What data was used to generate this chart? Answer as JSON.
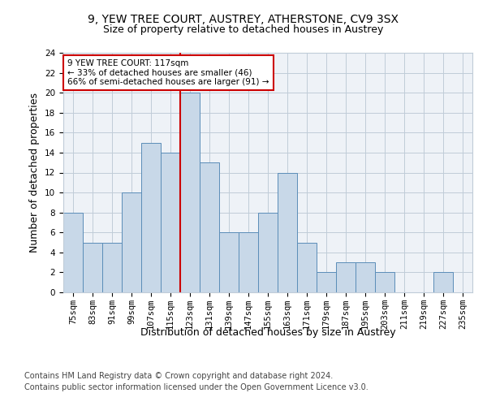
{
  "title1": "9, YEW TREE COURT, AUSTREY, ATHERSTONE, CV9 3SX",
  "title2": "Size of property relative to detached houses in Austrey",
  "xlabel": "Distribution of detached houses by size in Austrey",
  "ylabel": "Number of detached properties",
  "footer1": "Contains HM Land Registry data © Crown copyright and database right 2024.",
  "footer2": "Contains public sector information licensed under the Open Government Licence v3.0.",
  "categories": [
    "75sqm",
    "83sqm",
    "91sqm",
    "99sqm",
    "107sqm",
    "115sqm",
    "123sqm",
    "131sqm",
    "139sqm",
    "147sqm",
    "155sqm",
    "163sqm",
    "171sqm",
    "179sqm",
    "187sqm",
    "195sqm",
    "203sqm",
    "211sqm",
    "219sqm",
    "227sqm",
    "235sqm"
  ],
  "values": [
    8,
    5,
    5,
    10,
    15,
    14,
    20,
    13,
    6,
    6,
    8,
    12,
    5,
    2,
    3,
    3,
    2,
    0,
    0,
    2,
    0
  ],
  "bar_color": "#c8d8e8",
  "bar_edge_color": "#5b8db8",
  "annotation_line1": "9 YEW TREE COURT: 117sqm",
  "annotation_line2": "← 33% of detached houses are smaller (46)",
  "annotation_line3": "66% of semi-detached houses are larger (91) →",
  "vline_x_index": 5.5,
  "ylim": [
    0,
    24
  ],
  "yticks": [
    0,
    2,
    4,
    6,
    8,
    10,
    12,
    14,
    16,
    18,
    20,
    22,
    24
  ],
  "background_color": "#eef2f7",
  "grid_color": "#c0ccd8",
  "vline_color": "#cc0000",
  "annotation_box_color": "#cc0000",
  "title_fontsize": 10,
  "subtitle_fontsize": 9,
  "ylabel_fontsize": 9,
  "xlabel_fontsize": 9,
  "tick_fontsize": 7.5,
  "annotation_fontsize": 7.5,
  "footer_fontsize": 7
}
